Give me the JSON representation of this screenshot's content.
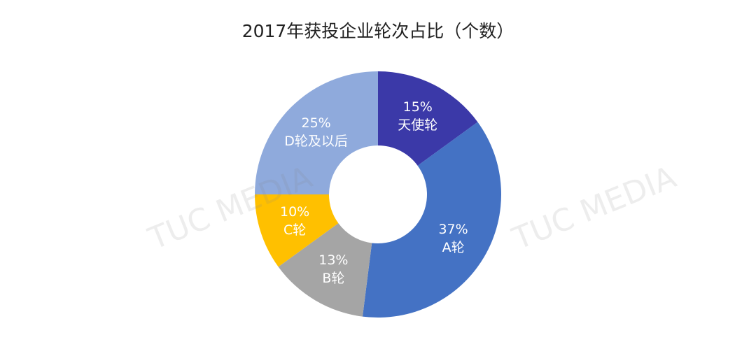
{
  "chart_data": {
    "type": "donut",
    "title": "2017年获投企业轮次占比（个数）",
    "categories": [
      "天使轮",
      "A轮",
      "B轮",
      "C轮",
      "D轮及以后"
    ],
    "values": [
      15,
      37,
      13,
      10,
      25
    ],
    "value_labels": [
      "15%",
      "37%",
      "13%",
      "10%",
      "25%"
    ],
    "colors": [
      "#3b39a8",
      "#4472c4",
      "#a5a5a5",
      "#ffc000",
      "#8faadc"
    ],
    "watermark": "TUC MEDIA"
  }
}
